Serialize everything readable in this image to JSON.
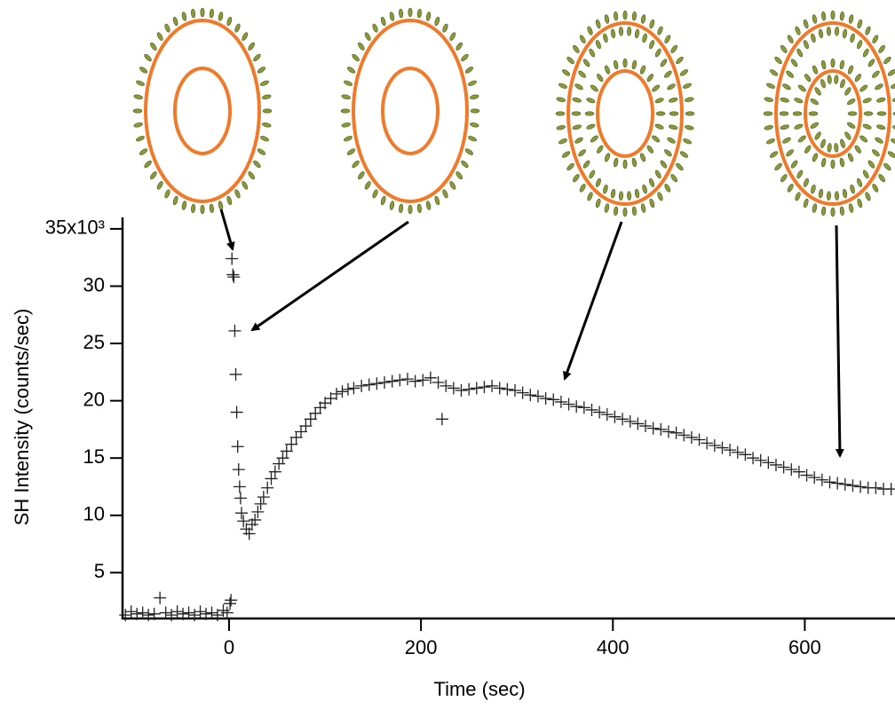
{
  "chart_data": {
    "type": "scatter",
    "x_label": "Time (sec)",
    "y_label": "SH Intensity (counts/sec)",
    "color": "#222222",
    "xlim": [
      -111,
      694
    ],
    "ylim": [
      1000,
      36000
    ],
    "xticks": [
      0,
      200,
      400,
      600
    ],
    "yticks": [
      {
        "value": 35000,
        "label": "35x10³"
      },
      {
        "value": 30000,
        "label": "30"
      },
      {
        "value": 25000,
        "label": "25"
      },
      {
        "value": 20000,
        "label": "20"
      },
      {
        "value": 15000,
        "label": "15"
      },
      {
        "value": 10000,
        "label": "10"
      },
      {
        "value": 5000,
        "label": "5"
      }
    ],
    "x": [
      -108,
      -102,
      -96,
      -90,
      -84,
      -78,
      -72,
      -66,
      -60,
      -54,
      -48,
      -42,
      -36,
      -30,
      -24,
      -18,
      -12,
      -6,
      -2,
      1,
      2,
      3,
      4,
      5,
      6,
      7,
      8,
      9,
      10,
      11,
      12,
      13,
      15,
      18,
      21,
      24,
      27,
      30,
      33,
      36,
      40,
      44,
      48,
      52,
      56,
      60,
      65,
      70,
      75,
      80,
      85,
      90,
      95,
      100,
      106,
      112,
      118,
      124,
      130,
      138,
      146,
      154,
      162,
      170,
      178,
      186,
      194,
      202,
      210,
      218,
      222,
      226,
      234,
      242,
      250,
      258,
      266,
      274,
      282,
      290,
      298,
      306,
      314,
      322,
      330,
      338,
      346,
      354,
      362,
      370,
      378,
      386,
      394,
      402,
      410,
      418,
      426,
      434,
      442,
      450,
      458,
      466,
      474,
      482,
      490,
      498,
      506,
      514,
      522,
      530,
      538,
      546,
      554,
      562,
      570,
      578,
      586,
      594,
      602,
      610,
      618,
      626,
      634,
      642,
      650,
      658,
      666,
      674,
      682,
      690
    ],
    "values": [
      1300,
      1600,
      1400,
      1500,
      1300,
      1400,
      2800,
      1500,
      1300,
      1600,
      1400,
      1500,
      1300,
      1600,
      1400,
      1500,
      1300,
      1700,
      1500,
      2300,
      2600,
      32400,
      31000,
      30800,
      26100,
      22300,
      19000,
      16000,
      14000,
      12500,
      11500,
      10200,
      9500,
      8800,
      8400,
      9200,
      9600,
      10300,
      11000,
      11600,
      12400,
      13200,
      13800,
      14500,
      15000,
      15600,
      16200,
      16800,
      17300,
      17800,
      18400,
      18900,
      19400,
      19800,
      20200,
      20600,
      20800,
      21000,
      21100,
      21300,
      21400,
      21500,
      21600,
      21700,
      21800,
      21900,
      21700,
      21800,
      22000,
      21600,
      18400,
      21300,
      21100,
      20900,
      21000,
      21100,
      21200,
      21300,
      21100,
      21000,
      20900,
      20700,
      20500,
      20400,
      20200,
      20100,
      19900,
      19700,
      19500,
      19400,
      19200,
      19000,
      18800,
      18600,
      18400,
      18200,
      18000,
      17800,
      17600,
      17500,
      17300,
      17200,
      17000,
      16800,
      16600,
      16300,
      16100,
      15900,
      15700,
      15500,
      15300,
      15000,
      14800,
      14600,
      14400,
      14200,
      14000,
      13800,
      13500,
      13300,
      13100,
      12900,
      12800,
      12700,
      12600,
      12500,
      12400,
      12400,
      12300,
      12300
    ]
  }
}
